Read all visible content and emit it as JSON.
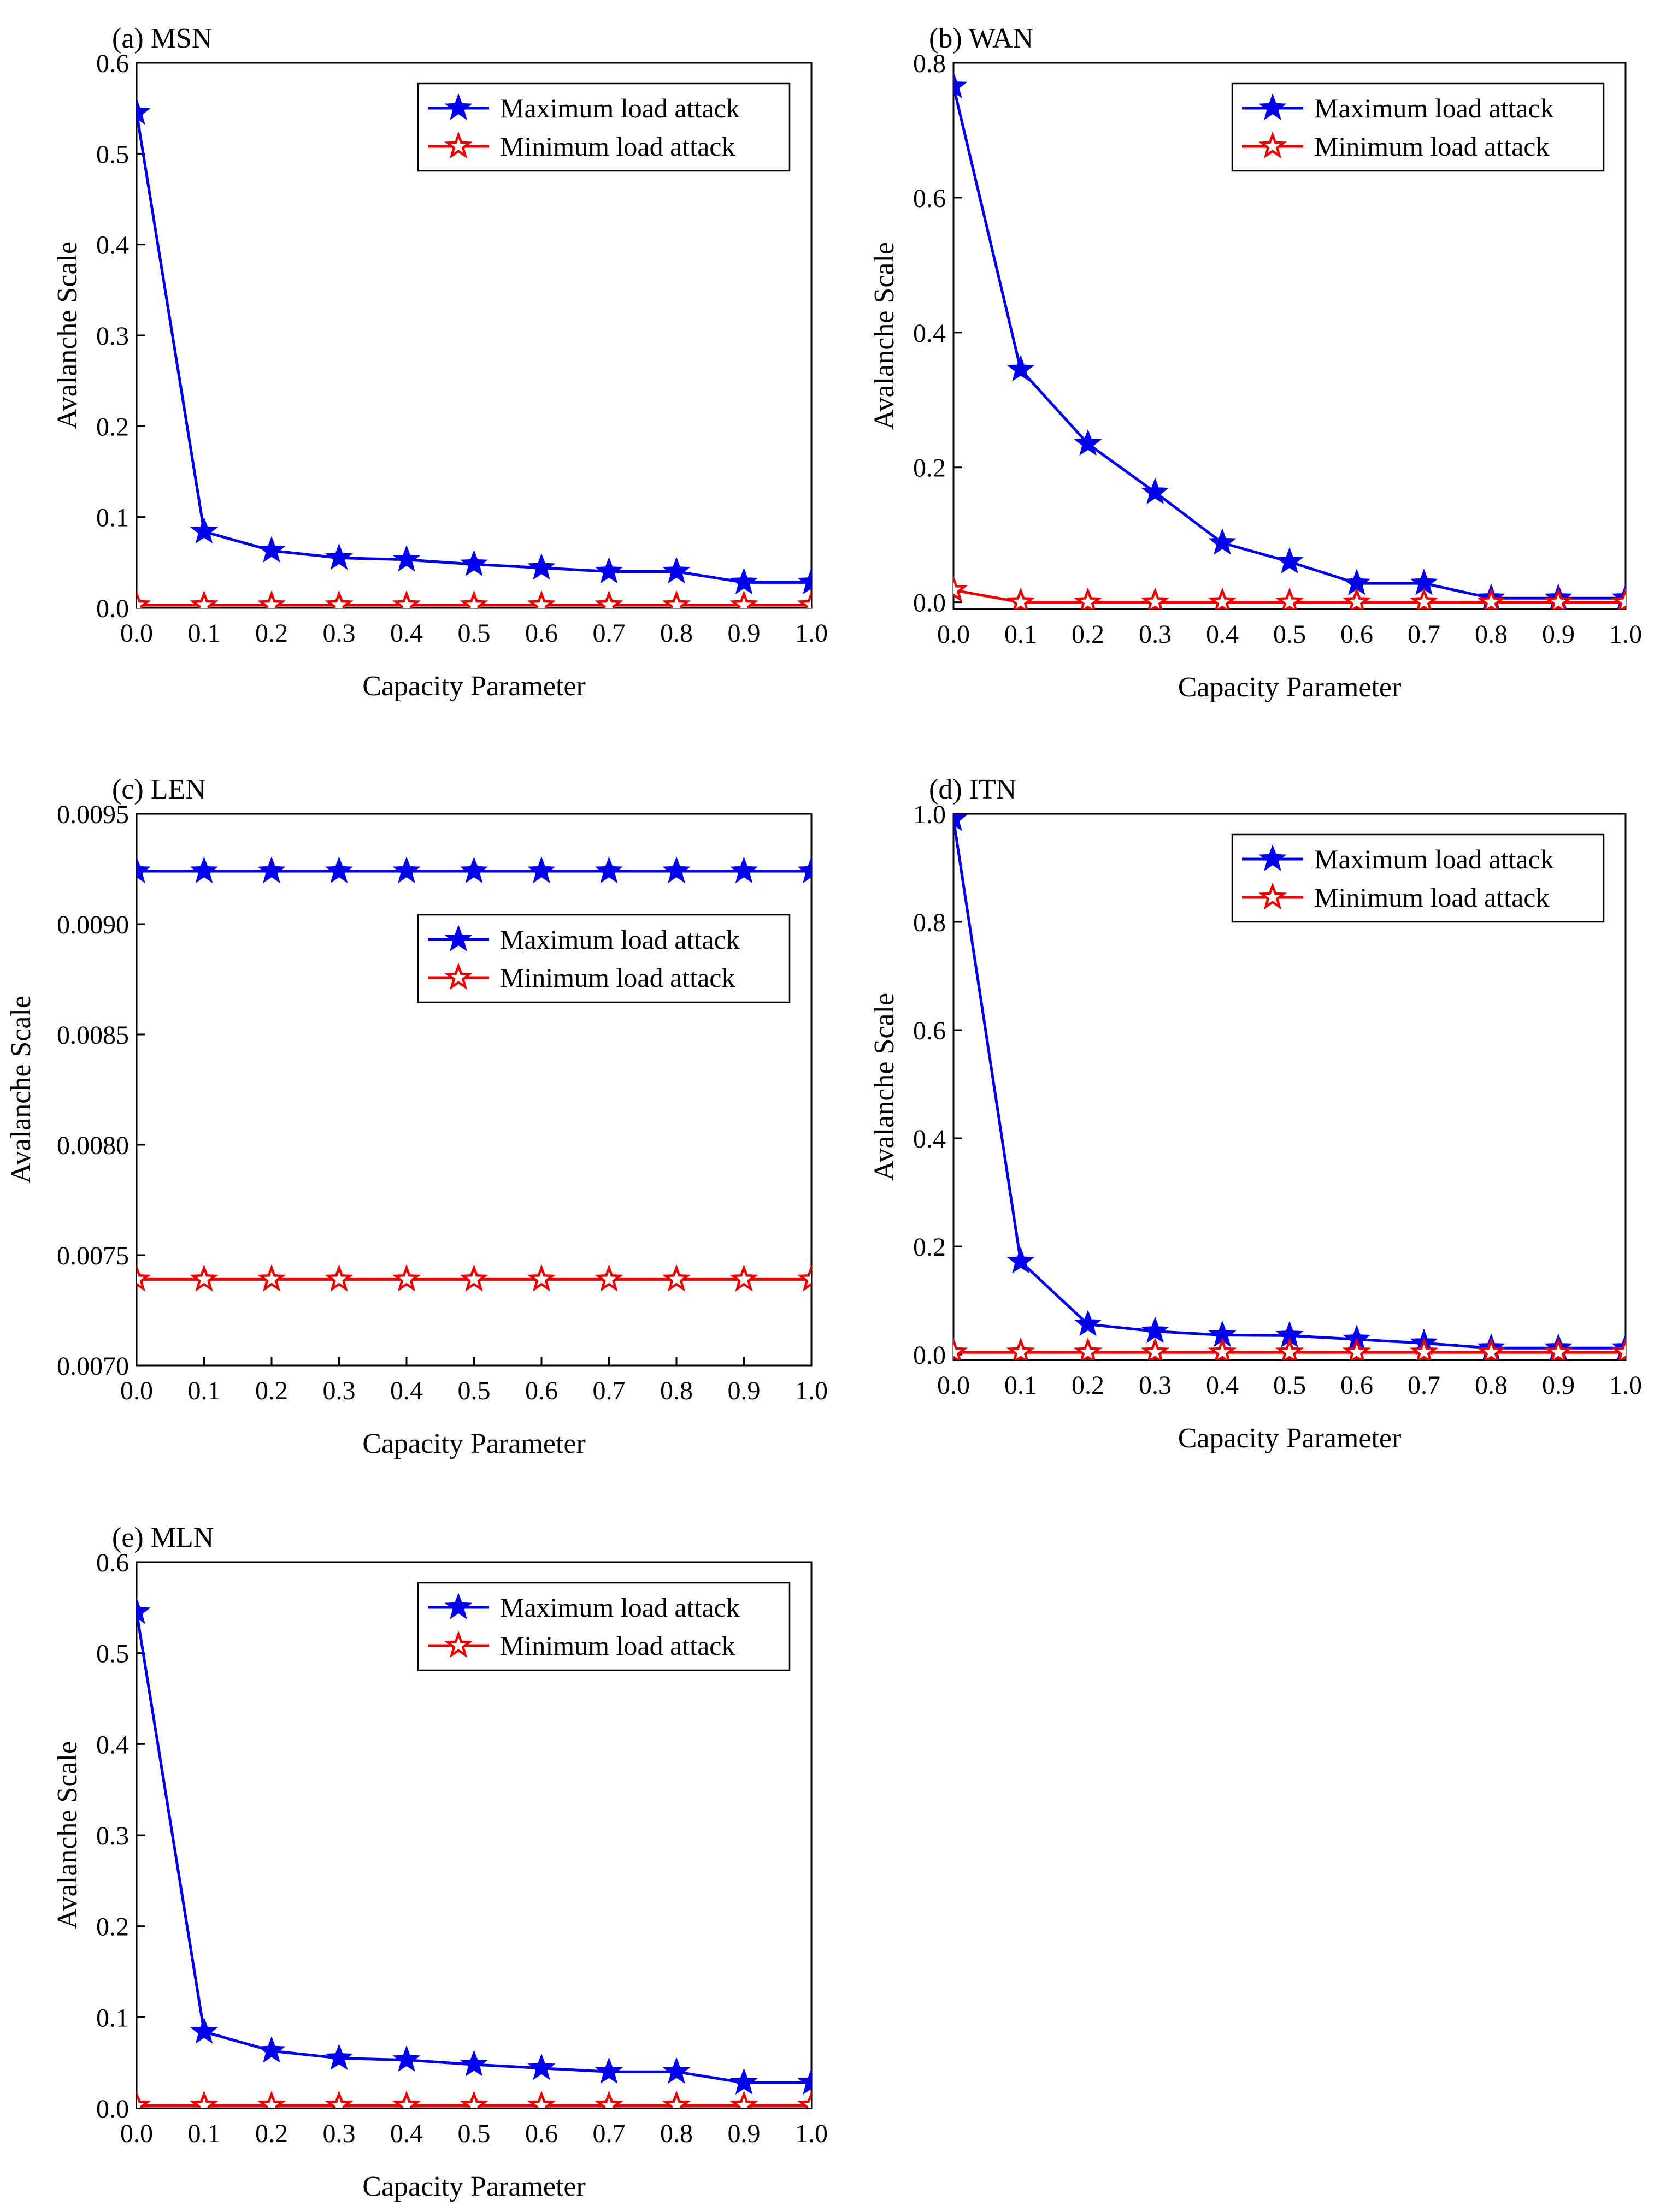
{
  "chart_data": [
    {
      "type": "line",
      "title": "(a) MSN",
      "xlabel": "Capacity Parameter",
      "ylabel": "Avalanche Scale",
      "x": [
        0.0,
        0.1,
        0.2,
        0.3,
        0.4,
        0.5,
        0.6,
        0.7,
        0.8,
        0.9,
        1.0
      ],
      "x_tick_labels": [
        "0.0",
        "0.1",
        "0.2",
        "0.3",
        "0.4",
        "0.5",
        "0.6",
        "0.7",
        "0.8",
        "0.9",
        "1.0"
      ],
      "xlim": [
        0,
        1
      ],
      "ylim": [
        0,
        0.6
      ],
      "y_ticks": [
        0,
        0.1,
        0.2,
        0.3,
        0.4,
        0.5,
        0.6
      ],
      "y_tick_labels": [
        "0.0",
        "0.1",
        "0.2",
        "0.3",
        "0.4",
        "0.5",
        "0.6"
      ],
      "legend_position": "top-right",
      "series": [
        {
          "name": "Maximum load attack",
          "color": "#0000ee",
          "marker": "filled-star",
          "values": [
            0.545,
            0.084,
            0.063,
            0.055,
            0.053,
            0.048,
            0.044,
            0.04,
            0.04,
            0.028,
            0.028
          ]
        },
        {
          "name": "Minimum load attack",
          "color": "#ee0000",
          "marker": "open-star",
          "values": [
            0.003,
            0.003,
            0.003,
            0.003,
            0.003,
            0.003,
            0.003,
            0.003,
            0.003,
            0.003,
            0.003
          ]
        }
      ]
    },
    {
      "type": "line",
      "title": "(b) WAN",
      "xlabel": "Capacity Parameter",
      "ylabel": "Avalanche Scale",
      "x": [
        0.0,
        0.1,
        0.2,
        0.3,
        0.4,
        0.5,
        0.6,
        0.7,
        0.8,
        0.9,
        1.0
      ],
      "x_tick_labels": [
        "0.0",
        "0.1",
        "0.2",
        "0.3",
        "0.4",
        "0.5",
        "0.6",
        "0.7",
        "0.8",
        "0.9",
        "1.0"
      ],
      "xlim": [
        0,
        1
      ],
      "ylim": [
        -0.01,
        0.8
      ],
      "y_ticks": [
        0,
        0.2,
        0.4,
        0.6,
        0.8
      ],
      "y_tick_labels": [
        "0.0",
        "0.2",
        "0.4",
        "0.6",
        "0.8"
      ],
      "legend_position": "top-right",
      "series": [
        {
          "name": "Maximum load attack",
          "color": "#0000ee",
          "marker": "filled-star",
          "values": [
            0.765,
            0.345,
            0.235,
            0.163,
            0.088,
            0.06,
            0.028,
            0.028,
            0.006,
            0.006,
            0.006
          ]
        },
        {
          "name": "Minimum load attack",
          "color": "#ee0000",
          "marker": "open-star",
          "values": [
            0.018,
            0.0,
            0.0,
            0.0,
            0.0,
            0.0,
            0.0,
            0.0,
            0.0,
            0.0,
            0.0
          ]
        }
      ]
    },
    {
      "type": "line",
      "title": "(c) LEN",
      "xlabel": "Capacity Parameter",
      "ylabel": "Avalanche Scale",
      "x": [
        0.0,
        0.1,
        0.2,
        0.3,
        0.4,
        0.5,
        0.6,
        0.7,
        0.8,
        0.9,
        1.0
      ],
      "x_tick_labels": [
        "0.0",
        "0.1",
        "0.2",
        "0.3",
        "0.4",
        "0.5",
        "0.6",
        "0.7",
        "0.8",
        "0.9",
        "1.0"
      ],
      "xlim": [
        0,
        1
      ],
      "ylim": [
        0.007,
        0.0095
      ],
      "y_ticks": [
        0.007,
        0.0075,
        0.008,
        0.0085,
        0.009,
        0.0095
      ],
      "y_tick_labels": [
        "0.0070",
        "0.0075",
        "0.0080",
        "0.0085",
        "0.0090",
        "0.0095"
      ],
      "legend_position": "upper-right",
      "series": [
        {
          "name": "Maximum load attack",
          "color": "#0000ee",
          "marker": "filled-star",
          "values": [
            0.00924,
            0.00924,
            0.00924,
            0.00924,
            0.00924,
            0.00924,
            0.00924,
            0.00924,
            0.00924,
            0.00924,
            0.00924
          ]
        },
        {
          "name": "Minimum load attack",
          "color": "#ee0000",
          "marker": "open-star",
          "values": [
            0.00739,
            0.00739,
            0.00739,
            0.00739,
            0.00739,
            0.00739,
            0.00739,
            0.00739,
            0.00739,
            0.00739,
            0.00739
          ]
        }
      ]
    },
    {
      "type": "line",
      "title": "(d) ITN",
      "xlabel": "Capacity Parameter",
      "ylabel": "Avalanche Scale",
      "x": [
        0.0,
        0.1,
        0.2,
        0.3,
        0.4,
        0.5,
        0.6,
        0.7,
        0.8,
        0.9,
        1.0
      ],
      "x_tick_labels": [
        "0.0",
        "0.1",
        "0.2",
        "0.3",
        "0.4",
        "0.5",
        "0.6",
        "0.7",
        "0.8",
        "0.9",
        "1.0"
      ],
      "xlim": [
        0,
        1
      ],
      "ylim": [
        -0.01,
        1.0
      ],
      "y_ticks": [
        0,
        0.2,
        0.4,
        0.6,
        0.8,
        1.0
      ],
      "y_tick_labels": [
        "0.0",
        "0.2",
        "0.4",
        "0.6",
        "0.8",
        "1.0"
      ],
      "legend_position": "top-right",
      "series": [
        {
          "name": "Maximum load attack",
          "color": "#0000ee",
          "marker": "filled-star",
          "values": [
            0.99,
            0.172,
            0.056,
            0.043,
            0.036,
            0.035,
            0.028,
            0.021,
            0.012,
            0.012,
            0.012
          ]
        },
        {
          "name": "Minimum load attack",
          "color": "#ee0000",
          "marker": "open-star",
          "values": [
            0.004,
            0.004,
            0.004,
            0.004,
            0.004,
            0.004,
            0.004,
            0.004,
            0.004,
            0.004,
            0.004
          ]
        }
      ]
    },
    {
      "type": "line",
      "title": "(e) MLN",
      "xlabel": "Capacity Parameter",
      "ylabel": "Avalanche Scale",
      "x": [
        0.0,
        0.1,
        0.2,
        0.3,
        0.4,
        0.5,
        0.6,
        0.7,
        0.8,
        0.9,
        1.0
      ],
      "x_tick_labels": [
        "0.0",
        "0.1",
        "0.2",
        "0.3",
        "0.4",
        "0.5",
        "0.6",
        "0.7",
        "0.8",
        "0.9",
        "1.0"
      ],
      "xlim": [
        0,
        1
      ],
      "ylim": [
        0,
        0.6
      ],
      "y_ticks": [
        0,
        0.1,
        0.2,
        0.3,
        0.4,
        0.5,
        0.6
      ],
      "y_tick_labels": [
        "0.0",
        "0.1",
        "0.2",
        "0.3",
        "0.4",
        "0.5",
        "0.6"
      ],
      "legend_position": "top-right",
      "series": [
        {
          "name": "Maximum load attack",
          "color": "#0000ee",
          "marker": "filled-star",
          "values": [
            0.545,
            0.084,
            0.063,
            0.055,
            0.053,
            0.048,
            0.044,
            0.04,
            0.04,
            0.028,
            0.028
          ]
        },
        {
          "name": "Minimum load attack",
          "color": "#ee0000",
          "marker": "open-star",
          "values": [
            0.003,
            0.003,
            0.003,
            0.003,
            0.003,
            0.003,
            0.003,
            0.003,
            0.003,
            0.003,
            0.003
          ]
        }
      ]
    }
  ]
}
